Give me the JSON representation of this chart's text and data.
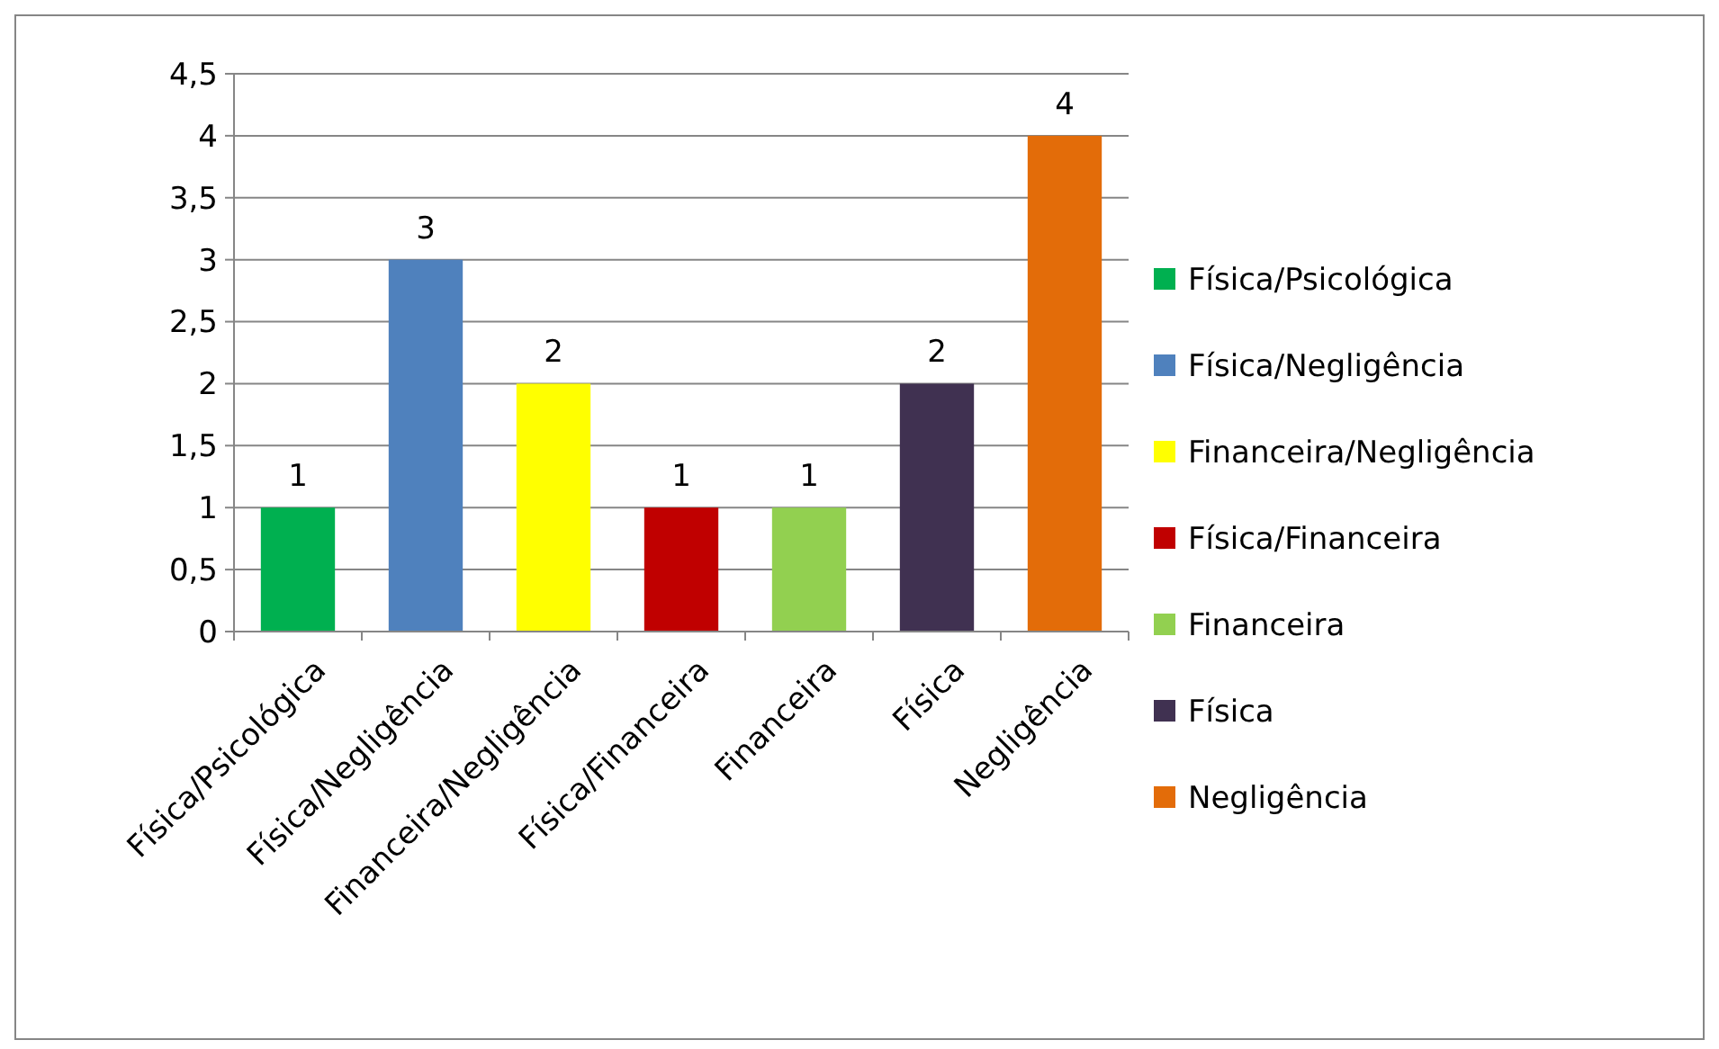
{
  "chart_data": {
    "type": "bar",
    "stacked": true,
    "categories": [
      "Física/Psicológica",
      "Física/Negligência",
      "Financeira/Negligência",
      "Física/Financeira",
      "Financeira",
      "Física",
      "Negligência"
    ],
    "series": [
      {
        "name": "Física/Psicológica",
        "color": "#00b050",
        "values": [
          1,
          null,
          null,
          null,
          null,
          null,
          null
        ]
      },
      {
        "name": "Física/Negligência",
        "color": "#4f81bd",
        "values": [
          null,
          3,
          null,
          null,
          null,
          null,
          null
        ]
      },
      {
        "name": "Financeira/Negligência",
        "color": "#ffff00",
        "values": [
          null,
          null,
          2,
          null,
          null,
          null,
          null
        ]
      },
      {
        "name": "Física/Financeira",
        "color": "#c00000",
        "values": [
          null,
          null,
          null,
          1,
          null,
          null,
          null
        ]
      },
      {
        "name": "Financeira",
        "color": "#92d050",
        "values": [
          null,
          null,
          null,
          null,
          1,
          null,
          null
        ]
      },
      {
        "name": "Física",
        "color": "#403151",
        "values": [
          null,
          null,
          null,
          null,
          null,
          2,
          null
        ]
      },
      {
        "name": "Negligência",
        "color": "#e36c09",
        "values": [
          null,
          null,
          null,
          null,
          null,
          null,
          4
        ]
      }
    ],
    "ylim": [
      0,
      4.5
    ],
    "yticks": [
      0,
      {
        "value": 0.5,
        "label": "0,5"
      },
      1,
      {
        "value": 1.5,
        "label": "1,5"
      },
      2,
      {
        "value": 2.5,
        "label": "2,5"
      },
      3,
      {
        "value": 3.5,
        "label": "3,5"
      },
      4,
      {
        "value": 4.5,
        "label": "4,5"
      }
    ],
    "grid": "y",
    "data_labels": true,
    "legend": "right"
  }
}
